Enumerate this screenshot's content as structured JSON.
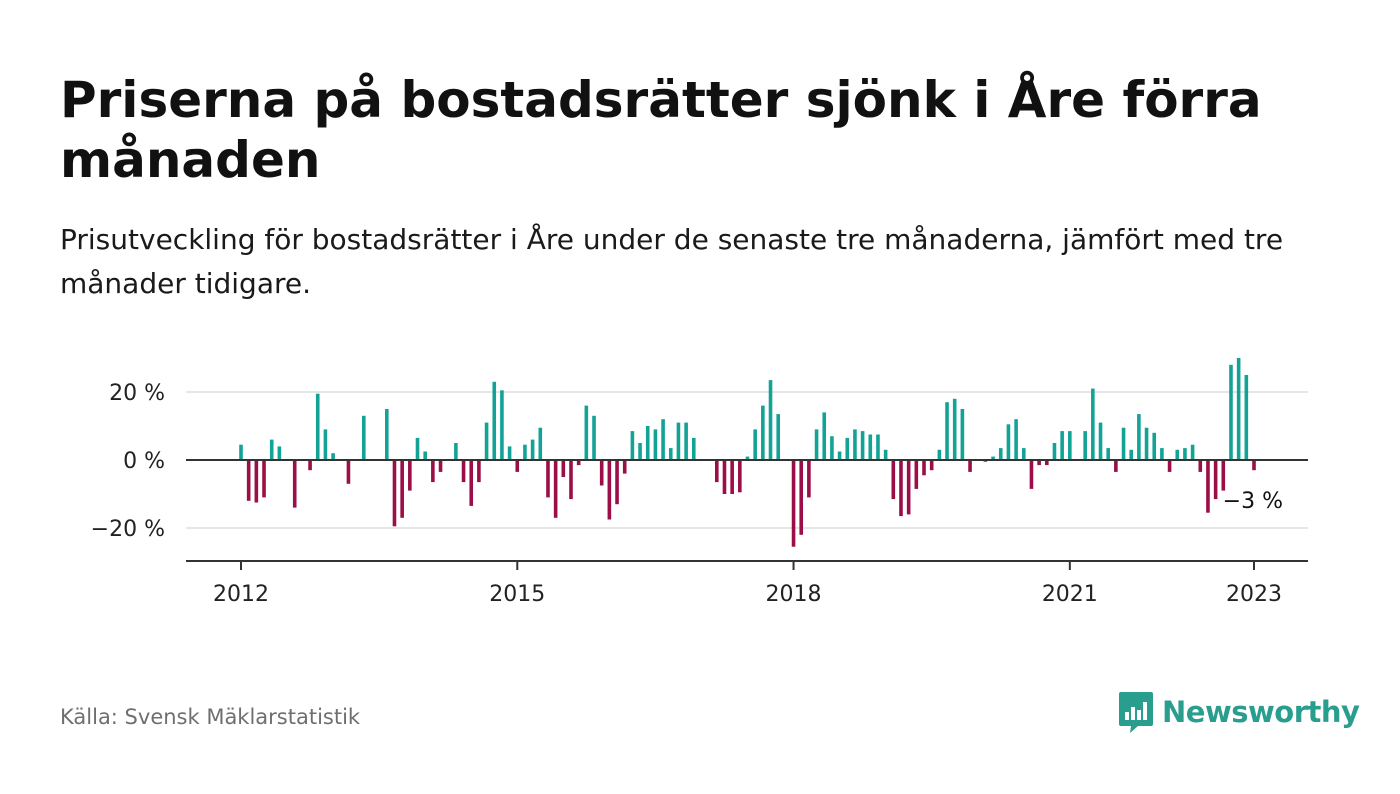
{
  "header": {
    "title": "Priserna på bostadsrätter sjönk i Åre förra månaden",
    "subtitle": "Prisutveckling för bostadsrätter i Åre under de senaste tre månaderna, jämfört med tre månader tidigare."
  },
  "footer": {
    "source": "Källa: Svensk Mäklarstatistik",
    "brand": "Newsworthy",
    "brand_icon": "bar-chart-speech-bubble-icon"
  },
  "colors": {
    "positive": "#13a396",
    "negative": "#9b0e47",
    "grid": "#dddddd",
    "axis": "#333333",
    "brand": "#2a9e8e"
  },
  "chart_data": {
    "type": "bar",
    "x_unit": "month",
    "ylim": [
      -30,
      30
    ],
    "yticks": [
      20,
      0,
      -20
    ],
    "ytick_labels": [
      "20 %",
      "0 %",
      "−20 %"
    ],
    "xticks": [
      "2012",
      "2015",
      "2018",
      "2021",
      "2023"
    ],
    "grid": true,
    "annotation": {
      "date": "2023-01",
      "text": "−3 %"
    },
    "data": [
      {
        "date": "2012-01",
        "value": 4.5
      },
      {
        "date": "2012-02",
        "value": -12
      },
      {
        "date": "2012-03",
        "value": -12.5
      },
      {
        "date": "2012-04",
        "value": -11
      },
      {
        "date": "2012-05",
        "value": 6
      },
      {
        "date": "2012-06",
        "value": 4
      },
      {
        "date": "2012-08",
        "value": -14
      },
      {
        "date": "2012-10",
        "value": -3
      },
      {
        "date": "2012-11",
        "value": 19.5
      },
      {
        "date": "2012-12",
        "value": 9
      },
      {
        "date": "2013-01",
        "value": 2
      },
      {
        "date": "2013-03",
        "value": -7
      },
      {
        "date": "2013-05",
        "value": 13
      },
      {
        "date": "2013-08",
        "value": 15
      },
      {
        "date": "2013-09",
        "value": -19.5
      },
      {
        "date": "2013-10",
        "value": -17
      },
      {
        "date": "2013-11",
        "value": -9
      },
      {
        "date": "2013-12",
        "value": 6.5
      },
      {
        "date": "2014-01",
        "value": 2.5
      },
      {
        "date": "2014-02",
        "value": -6.5
      },
      {
        "date": "2014-03",
        "value": -3.5
      },
      {
        "date": "2014-05",
        "value": 5
      },
      {
        "date": "2014-06",
        "value": -6.5
      },
      {
        "date": "2014-07",
        "value": -13.5
      },
      {
        "date": "2014-08",
        "value": -6.5
      },
      {
        "date": "2014-09",
        "value": 11
      },
      {
        "date": "2014-10",
        "value": 23
      },
      {
        "date": "2014-11",
        "value": 20.5
      },
      {
        "date": "2014-12",
        "value": 4
      },
      {
        "date": "2015-01",
        "value": -3.5
      },
      {
        "date": "2015-02",
        "value": 4.5
      },
      {
        "date": "2015-03",
        "value": 6
      },
      {
        "date": "2015-04",
        "value": 9.5
      },
      {
        "date": "2015-05",
        "value": -11
      },
      {
        "date": "2015-06",
        "value": -17
      },
      {
        "date": "2015-07",
        "value": -5
      },
      {
        "date": "2015-08",
        "value": -11.5
      },
      {
        "date": "2015-09",
        "value": -1.5
      },
      {
        "date": "2015-10",
        "value": 16
      },
      {
        "date": "2015-11",
        "value": 13
      },
      {
        "date": "2015-12",
        "value": -7.5
      },
      {
        "date": "2016-01",
        "value": -17.5
      },
      {
        "date": "2016-02",
        "value": -13
      },
      {
        "date": "2016-03",
        "value": -4
      },
      {
        "date": "2016-04",
        "value": 8.5
      },
      {
        "date": "2016-05",
        "value": 5
      },
      {
        "date": "2016-06",
        "value": 10
      },
      {
        "date": "2016-07",
        "value": 9
      },
      {
        "date": "2016-08",
        "value": 12
      },
      {
        "date": "2016-09",
        "value": 3.5
      },
      {
        "date": "2016-10",
        "value": 11
      },
      {
        "date": "2016-11",
        "value": 11
      },
      {
        "date": "2016-12",
        "value": 6.5
      },
      {
        "date": "2017-03",
        "value": -6.5
      },
      {
        "date": "2017-04",
        "value": -10
      },
      {
        "date": "2017-05",
        "value": -10
      },
      {
        "date": "2017-06",
        "value": -9.5
      },
      {
        "date": "2017-07",
        "value": 1
      },
      {
        "date": "2017-08",
        "value": 9
      },
      {
        "date": "2017-09",
        "value": 16
      },
      {
        "date": "2017-10",
        "value": 23.5
      },
      {
        "date": "2017-11",
        "value": 13.5
      },
      {
        "date": "2018-01",
        "value": -25.5
      },
      {
        "date": "2018-02",
        "value": -22
      },
      {
        "date": "2018-03",
        "value": -11
      },
      {
        "date": "2018-04",
        "value": 9
      },
      {
        "date": "2018-05",
        "value": 14
      },
      {
        "date": "2018-06",
        "value": 7
      },
      {
        "date": "2018-07",
        "value": 2.5
      },
      {
        "date": "2018-08",
        "value": 6.5
      },
      {
        "date": "2018-09",
        "value": 9
      },
      {
        "date": "2018-10",
        "value": 8.5
      },
      {
        "date": "2018-11",
        "value": 7.5
      },
      {
        "date": "2018-12",
        "value": 7.5
      },
      {
        "date": "2019-01",
        "value": 3
      },
      {
        "date": "2019-02",
        "value": -11.5
      },
      {
        "date": "2019-03",
        "value": -16.5
      },
      {
        "date": "2019-04",
        "value": -16
      },
      {
        "date": "2019-05",
        "value": -8.5
      },
      {
        "date": "2019-06",
        "value": -4.5
      },
      {
        "date": "2019-07",
        "value": -3
      },
      {
        "date": "2019-08",
        "value": 3
      },
      {
        "date": "2019-09",
        "value": 17
      },
      {
        "date": "2019-10",
        "value": 18
      },
      {
        "date": "2019-11",
        "value": 15
      },
      {
        "date": "2019-12",
        "value": -3.5
      },
      {
        "date": "2020-02",
        "value": -0.5
      },
      {
        "date": "2020-03",
        "value": 1
      },
      {
        "date": "2020-04",
        "value": 3.5
      },
      {
        "date": "2020-05",
        "value": 10.5
      },
      {
        "date": "2020-06",
        "value": 12
      },
      {
        "date": "2020-07",
        "value": 3.5
      },
      {
        "date": "2020-08",
        "value": -8.5
      },
      {
        "date": "2020-09",
        "value": -1.5
      },
      {
        "date": "2020-10",
        "value": -1.5
      },
      {
        "date": "2020-11",
        "value": 5
      },
      {
        "date": "2020-12",
        "value": 8.5
      },
      {
        "date": "2021-01",
        "value": 8.5
      },
      {
        "date": "2021-03",
        "value": 8.5
      },
      {
        "date": "2021-04",
        "value": 21
      },
      {
        "date": "2021-05",
        "value": 11
      },
      {
        "date": "2021-06",
        "value": 3.5
      },
      {
        "date": "2021-07",
        "value": -3.5
      },
      {
        "date": "2021-08",
        "value": 9.5
      },
      {
        "date": "2021-09",
        "value": 3
      },
      {
        "date": "2021-10",
        "value": 13.5
      },
      {
        "date": "2021-11",
        "value": 9.5
      },
      {
        "date": "2021-12",
        "value": 8
      },
      {
        "date": "2022-01",
        "value": 3.5
      },
      {
        "date": "2022-02",
        "value": -3.5
      },
      {
        "date": "2022-03",
        "value": 3
      },
      {
        "date": "2022-04",
        "value": 3.5
      },
      {
        "date": "2022-05",
        "value": 4.5
      },
      {
        "date": "2022-06",
        "value": -3.5
      },
      {
        "date": "2022-07",
        "value": -15.5
      },
      {
        "date": "2022-08",
        "value": -11.5
      },
      {
        "date": "2022-09",
        "value": -9
      },
      {
        "date": "2022-10",
        "value": 28
      },
      {
        "date": "2022-11",
        "value": 30
      },
      {
        "date": "2022-12",
        "value": 25
      },
      {
        "date": "2023-01",
        "value": -3
      }
    ]
  }
}
